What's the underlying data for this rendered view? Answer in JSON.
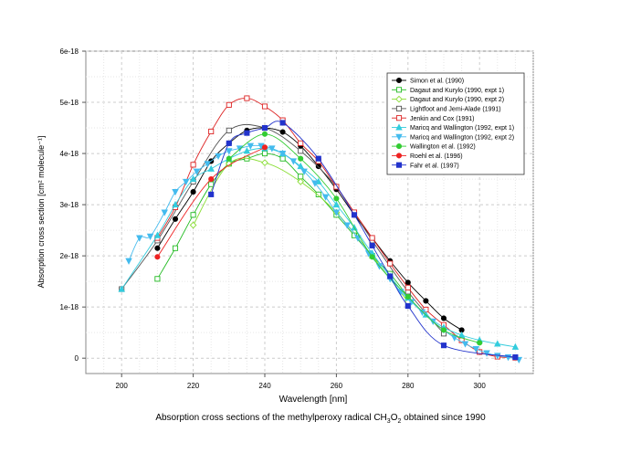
{
  "chart_data": {
    "type": "line",
    "xlabel": "Wavelength [nm]",
    "ylabel": "Absorption cross section [cm² molecule⁻¹]",
    "xlim": [
      190,
      315
    ],
    "ylim": [
      -3e-19,
      6e-18
    ],
    "x_ticks": [
      200,
      220,
      240,
      260,
      280,
      300
    ],
    "y_ticks": [
      0,
      1e-18,
      2e-18,
      3e-18,
      4e-18,
      5e-18,
      6e-18
    ],
    "y_tick_labels": [
      "0",
      "1e-18",
      "2e-18",
      "3e-18",
      "4e-18",
      "5e-18",
      "6e-18"
    ],
    "grid": true,
    "legend_position": "top-right",
    "series": [
      {
        "name": "Simon et al. (1990)",
        "color": "#000000",
        "marker": "circle",
        "filled": true,
        "points": [
          [
            210,
            2.15e-18
          ],
          [
            215,
            2.72e-18
          ],
          [
            220,
            3.25e-18
          ],
          [
            225,
            3.85e-18
          ],
          [
            230,
            4.2e-18
          ],
          [
            235,
            4.45e-18
          ],
          [
            240,
            4.5e-18
          ],
          [
            245,
            4.42e-18
          ],
          [
            250,
            4.15e-18
          ],
          [
            255,
            3.75e-18
          ],
          [
            260,
            3.3e-18
          ],
          [
            265,
            2.8e-18
          ],
          [
            270,
            2.35e-18
          ],
          [
            275,
            1.9e-18
          ],
          [
            280,
            1.48e-18
          ],
          [
            285,
            1.12e-18
          ],
          [
            290,
            7.8e-19
          ],
          [
            295,
            5.5e-19
          ]
        ]
      },
      {
        "name": "Dagaut and Kurylo (1990, expt 1)",
        "color": "#22bb22",
        "marker": "square",
        "filled": false,
        "points": [
          [
            210,
            1.55e-18
          ],
          [
            215,
            2.15e-18
          ],
          [
            220,
            2.8e-18
          ],
          [
            225,
            3.4e-18
          ],
          [
            230,
            3.8e-18
          ],
          [
            235,
            3.9e-18
          ],
          [
            240,
            4e-18
          ],
          [
            245,
            3.9e-18
          ],
          [
            250,
            3.55e-18
          ],
          [
            255,
            3.2e-18
          ],
          [
            260,
            2.8e-18
          ],
          [
            265,
            2.4e-18
          ],
          [
            270,
            2e-18
          ],
          [
            275,
            1.65e-18
          ],
          [
            280,
            1.2e-18
          ]
        ]
      },
      {
        "name": "Dagaut and Kurylo (1990, expt 2)",
        "color": "#88dd33",
        "marker": "diamond",
        "filled": false,
        "points": [
          [
            220,
            2.6e-18
          ],
          [
            230,
            3.8e-18
          ],
          [
            240,
            3.82e-18
          ],
          [
            250,
            3.45e-18
          ],
          [
            260,
            2.85e-18
          ],
          [
            270,
            2e-18
          ],
          [
            280,
            1.1e-18
          ]
        ]
      },
      {
        "name": "Lightfoot and Jemi-Alade (1991)",
        "color": "#555555",
        "marker": "square",
        "filled": false,
        "points": [
          [
            200,
            1.35e-18
          ],
          [
            210,
            2.3e-18
          ],
          [
            220,
            3.45e-18
          ],
          [
            230,
            4.45e-18
          ],
          [
            240,
            4.5e-18
          ],
          [
            250,
            4.05e-18
          ],
          [
            260,
            3.35e-18
          ],
          [
            270,
            2.3e-18
          ],
          [
            280,
            1.3e-18
          ],
          [
            290,
            4.8e-19
          ]
        ]
      },
      {
        "name": "Jenkin and Cox (1991)",
        "color": "#dd2222",
        "marker": "square",
        "filled": false,
        "points": [
          [
            210,
            2.35e-18
          ],
          [
            215,
            2.95e-18
          ],
          [
            220,
            3.78e-18
          ],
          [
            225,
            4.43e-18
          ],
          [
            230,
            4.95e-18
          ],
          [
            235,
            5.08e-18
          ],
          [
            240,
            4.92e-18
          ],
          [
            245,
            4.65e-18
          ],
          [
            250,
            4.2e-18
          ],
          [
            255,
            3.85e-18
          ],
          [
            260,
            3.35e-18
          ],
          [
            265,
            2.85e-18
          ],
          [
            270,
            2.35e-18
          ],
          [
            275,
            1.85e-18
          ],
          [
            280,
            1.38e-18
          ],
          [
            285,
            9.5e-19
          ],
          [
            290,
            6.5e-19
          ],
          [
            295,
            3.5e-19
          ],
          [
            300,
            1.2e-19
          ],
          [
            305,
            3e-20
          ],
          [
            310,
            1e-20
          ]
        ]
      },
      {
        "name": "Maricq and Wallington (1992, expt 1)",
        "color": "#33ccdd",
        "marker": "triangle-up",
        "filled": true,
        "points": [
          [
            200,
            1.35e-18
          ],
          [
            210,
            2.4e-18
          ],
          [
            215,
            3e-18
          ],
          [
            220,
            3.5e-18
          ],
          [
            225,
            3.7e-18
          ],
          [
            230,
            3.9e-18
          ],
          [
            235,
            4.05e-18
          ],
          [
            240,
            4.1e-18
          ],
          [
            245,
            4e-18
          ],
          [
            250,
            3.75e-18
          ],
          [
            255,
            3.45e-18
          ],
          [
            260,
            3e-18
          ],
          [
            265,
            2.55e-18
          ],
          [
            270,
            2.05e-18
          ],
          [
            275,
            1.6e-18
          ],
          [
            280,
            1.18e-18
          ],
          [
            285,
            8.5e-19
          ],
          [
            290,
            6e-19
          ],
          [
            295,
            4.5e-19
          ],
          [
            300,
            3.5e-19
          ],
          [
            305,
            2.8e-19
          ],
          [
            310,
            2.2e-19
          ]
        ]
      },
      {
        "name": "Maricq and Wallington (1992, expt 2)",
        "color": "#44bbee",
        "marker": "triangle-down",
        "filled": true,
        "points": [
          [
            202,
            1.9e-18
          ],
          [
            205,
            2.35e-18
          ],
          [
            208,
            2.38e-18
          ],
          [
            212,
            2.85e-18
          ],
          [
            215,
            3.25e-18
          ],
          [
            218,
            3.45e-18
          ],
          [
            221,
            3.65e-18
          ],
          [
            224,
            3.8e-18
          ],
          [
            227,
            3.95e-18
          ],
          [
            230,
            4.05e-18
          ],
          [
            233,
            4.1e-18
          ],
          [
            236,
            4.15e-18
          ],
          [
            239,
            4.15e-18
          ],
          [
            242,
            4.1e-18
          ],
          [
            245,
            4e-18
          ],
          [
            248,
            3.85e-18
          ],
          [
            251,
            3.65e-18
          ],
          [
            254,
            3.42e-18
          ],
          [
            257,
            3.15e-18
          ],
          [
            260,
            2.85e-18
          ],
          [
            263,
            2.6e-18
          ],
          [
            266,
            2.35e-18
          ],
          [
            269,
            2.05e-18
          ],
          [
            272,
            1.8e-18
          ],
          [
            275,
            1.55e-18
          ],
          [
            278,
            1.3e-18
          ],
          [
            281,
            1.1e-18
          ],
          [
            284,
            9e-19
          ],
          [
            287,
            7.2e-19
          ],
          [
            290,
            5.5e-19
          ],
          [
            293,
            4e-19
          ],
          [
            296,
            2.8e-19
          ],
          [
            299,
            1.8e-19
          ],
          [
            302,
            1e-19
          ],
          [
            305,
            5e-20
          ],
          [
            308,
            2e-20
          ],
          [
            311,
            -3e-20
          ]
        ]
      },
      {
        "name": "Wallington et al. (1992)",
        "color": "#33cc33",
        "marker": "circle",
        "filled": true,
        "points": [
          [
            230,
            3.9e-18
          ],
          [
            240,
            4.38e-18
          ],
          [
            250,
            3.9e-18
          ],
          [
            260,
            3.12e-18
          ],
          [
            270,
            1.98e-18
          ],
          [
            280,
            1.2e-18
          ],
          [
            290,
            5.5e-19
          ],
          [
            300,
            3e-19
          ]
        ]
      },
      {
        "name": "Roehl et al. (1996)",
        "color": "#ee2222",
        "marker": "circle",
        "filled": true,
        "points": [
          [
            210,
            1.98e-18
          ],
          [
            225,
            3.5e-18
          ],
          [
            240,
            4.12e-18
          ]
        ]
      },
      {
        "name": "Fahr et al. (1997)",
        "color": "#2233cc",
        "marker": "square",
        "filled": true,
        "points": [
          [
            225,
            3.2e-18
          ],
          [
            230,
            4.2e-18
          ],
          [
            235,
            4.4e-18
          ],
          [
            240,
            4.5e-18
          ],
          [
            245,
            4.6e-18
          ],
          [
            255,
            3.9e-18
          ],
          [
            265,
            2.8e-18
          ],
          [
            270,
            2.2e-18
          ],
          [
            275,
            1.6e-18
          ],
          [
            280,
            1.02e-18
          ],
          [
            290,
            2.5e-19
          ],
          [
            310,
            2e-20
          ]
        ]
      }
    ]
  },
  "caption": {
    "main": "Absorption cross sections of the methylperoxy radical CH",
    "sub1": "3",
    "mid": "O",
    "sub2": "2",
    "end": " obtained since 1990"
  }
}
